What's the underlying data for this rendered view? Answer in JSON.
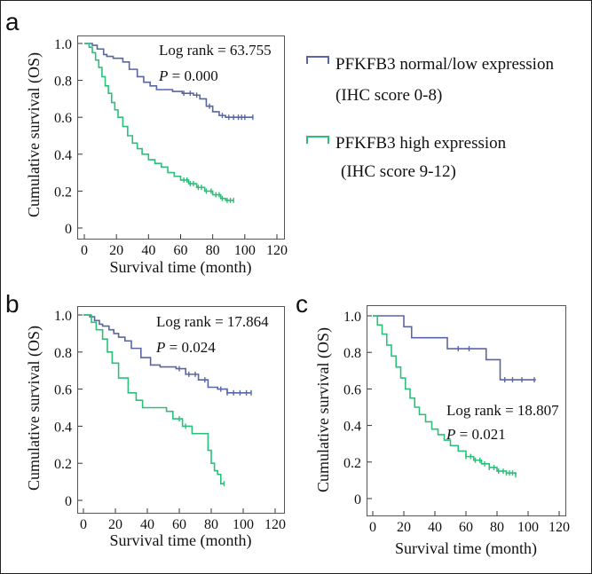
{
  "colors": {
    "low": "#5966a3",
    "high": "#2bc07a",
    "axis": "#333333",
    "frame": "#555555"
  },
  "legend": {
    "low_label": "PFKFB3 normal/low expression",
    "low_sub": "(IHC score 0-8)",
    "high_label": "PFKFB3 high expression",
    "high_sub": "(IHC score 9-12)"
  },
  "chart_data": [
    {
      "panel": "a",
      "type": "line",
      "title": "",
      "xlabel": "Survival time (month)",
      "ylabel": "Cumulative survival (OS)",
      "xlim": [
        0,
        120
      ],
      "ylim": [
        0,
        1.0
      ],
      "xticks": [
        "0",
        "20",
        "40",
        "60",
        "80",
        "100",
        "120"
      ],
      "yticks": [
        "0",
        "0.2",
        "0.4",
        "0.6",
        "0.8",
        "1.0"
      ],
      "annotation": {
        "stat": "Log rank = 63.755",
        "p_symbol": "P",
        "p_value": " = 0.000"
      },
      "series": [
        {
          "name": "PFKFB3 normal/low expression",
          "x": [
            0,
            5,
            8,
            12,
            14,
            18,
            21,
            24,
            28,
            33,
            37,
            41,
            45,
            50,
            55,
            61,
            68,
            72,
            76,
            80,
            84,
            88,
            105
          ],
          "y": [
            1.0,
            0.99,
            0.97,
            0.94,
            0.93,
            0.92,
            0.92,
            0.9,
            0.86,
            0.82,
            0.79,
            0.77,
            0.75,
            0.75,
            0.74,
            0.73,
            0.72,
            0.7,
            0.66,
            0.63,
            0.61,
            0.6,
            0.6
          ],
          "censor_x": [
            62,
            66,
            70,
            78,
            86,
            90,
            93,
            96,
            98,
            100,
            105
          ]
        },
        {
          "name": "PFKFB3 high expression",
          "x": [
            0,
            3,
            5,
            7,
            9,
            11,
            13,
            15,
            17,
            19,
            21,
            24,
            27,
            30,
            33,
            36,
            40,
            44,
            48,
            52,
            56,
            60,
            65,
            70,
            75,
            80,
            85,
            88,
            93
          ],
          "y": [
            1.0,
            0.98,
            0.95,
            0.91,
            0.87,
            0.82,
            0.77,
            0.73,
            0.68,
            0.64,
            0.6,
            0.55,
            0.5,
            0.46,
            0.43,
            0.4,
            0.37,
            0.35,
            0.33,
            0.3,
            0.28,
            0.26,
            0.24,
            0.22,
            0.2,
            0.18,
            0.16,
            0.15,
            0.15
          ],
          "censor_x": [
            62,
            64,
            66,
            68,
            71,
            73,
            76,
            79,
            82,
            84,
            86,
            89,
            91,
            93
          ]
        }
      ]
    },
    {
      "panel": "b",
      "type": "line",
      "title": "",
      "xlabel": "Survival time (month)",
      "ylabel": "Cumulative survival (OS)",
      "xlim": [
        0,
        120
      ],
      "ylim": [
        0,
        1.0
      ],
      "xticks": [
        "0",
        "20",
        "40",
        "60",
        "80",
        "100",
        "120"
      ],
      "yticks": [
        "0",
        "0.2",
        "0.4",
        "0.6",
        "0.8",
        "1.0"
      ],
      "annotation": {
        "stat": "Log rank = 17.864",
        "p_symbol": "P",
        "p_value": " = 0.024"
      },
      "series": [
        {
          "name": "PFKFB3 normal/low expression",
          "x": [
            0,
            4,
            7,
            10,
            12,
            16,
            19,
            22,
            26,
            30,
            36,
            42,
            48,
            54,
            58,
            64,
            72,
            78,
            84,
            90,
            105
          ],
          "y": [
            1.0,
            0.99,
            0.97,
            0.95,
            0.94,
            0.92,
            0.9,
            0.88,
            0.86,
            0.82,
            0.77,
            0.73,
            0.72,
            0.72,
            0.71,
            0.68,
            0.65,
            0.61,
            0.6,
            0.58,
            0.58
          ],
          "censor_x": [
            60,
            66,
            70,
            76,
            86,
            90,
            94,
            98,
            102,
            105
          ]
        },
        {
          "name": "PFKFB3 high expression",
          "x": [
            0,
            5,
            8,
            12,
            15,
            18,
            22,
            28,
            33,
            37,
            40,
            46,
            52,
            56,
            62,
            68,
            74,
            78,
            80,
            82,
            84,
            86,
            88
          ],
          "y": [
            1.0,
            0.96,
            0.92,
            0.87,
            0.8,
            0.74,
            0.66,
            0.58,
            0.54,
            0.5,
            0.5,
            0.5,
            0.48,
            0.44,
            0.4,
            0.36,
            0.36,
            0.27,
            0.2,
            0.16,
            0.14,
            0.09,
            0.09
          ],
          "censor_x": [
            60,
            64,
            88
          ]
        }
      ]
    },
    {
      "panel": "c",
      "type": "line",
      "title": "",
      "xlabel": "Survival time (month)",
      "ylabel": "Cumulative survival (OS)",
      "xlim": [
        0,
        120
      ],
      "ylim": [
        0,
        1.0
      ],
      "xticks": [
        "0",
        "20",
        "40",
        "60",
        "80",
        "100",
        "120"
      ],
      "yticks": [
        "0",
        "0.2",
        "0.4",
        "0.6",
        "0.8",
        "1.0"
      ],
      "annotation": {
        "stat": "Log rank = 18.807",
        "p_symbol": "P",
        "p_value": " = 0.021"
      },
      "series": [
        {
          "name": "PFKFB3 normal/low expression",
          "x": [
            0,
            20,
            25,
            48,
            73,
            82,
            105
          ],
          "y": [
            1.0,
            0.94,
            0.88,
            0.82,
            0.76,
            0.65,
            0.65
          ],
          "censor_x": [
            55,
            62,
            85,
            90,
            96,
            104
          ]
        },
        {
          "name": "PFKFB3 high expression",
          "x": [
            0,
            3,
            6,
            9,
            12,
            15,
            18,
            21,
            24,
            27,
            30,
            34,
            38,
            42,
            46,
            50,
            55,
            60,
            65,
            70,
            75,
            80,
            86,
            92
          ],
          "y": [
            1.0,
            0.95,
            0.9,
            0.84,
            0.78,
            0.72,
            0.66,
            0.6,
            0.55,
            0.5,
            0.46,
            0.42,
            0.38,
            0.35,
            0.32,
            0.29,
            0.26,
            0.23,
            0.21,
            0.19,
            0.17,
            0.15,
            0.14,
            0.13
          ],
          "censor_x": [
            60,
            63,
            66,
            69,
            72,
            75,
            78,
            81,
            84,
            86,
            88,
            90,
            92
          ]
        }
      ]
    }
  ]
}
